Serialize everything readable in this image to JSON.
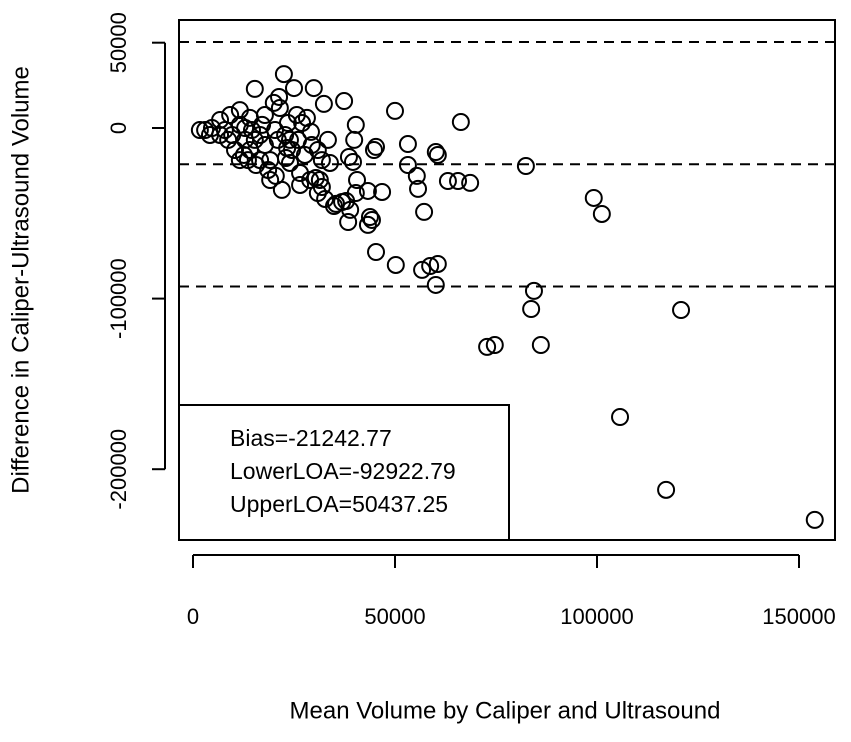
{
  "chart_data": {
    "type": "scatter",
    "x_label": "Mean Volume by Caliper and Ultrasound",
    "y_label": "Difference in Caliper-Ultrasound Volume",
    "x": [
      153900,
      117100,
      105700,
      120800,
      86100,
      72800,
      74700,
      83700,
      84400,
      82400,
      99200,
      101200,
      66300,
      50000,
      53200,
      53200,
      55400,
      55700,
      57200,
      60100,
      60600,
      63100,
      65600,
      68600,
      50200,
      56700,
      58700,
      60600,
      60100,
      45300,
      45300,
      44800,
      43800,
      44300,
      43300,
      46800,
      43300,
      40600,
      40300,
      37900,
      38900,
      36900,
      35400,
      34900,
      32700,
      38400,
      40300,
      39600,
      38600,
      37400,
      39900,
      33900,
      33400,
      32400,
      29900,
      25000,
      22500,
      21300,
      20000,
      15300,
      31400,
      30400,
      30900,
      31900,
      29000,
      26500,
      24000,
      22000,
      19100,
      26500,
      23300,
      27000,
      29200,
      28200,
      25700,
      23500,
      21500,
      17800,
      11600,
      9200,
      6700,
      19100,
      16600,
      14100,
      12900,
      11600,
      10400,
      8700,
      6700,
      4700,
      3000,
      1700,
      4200,
      7900,
      11600,
      14600,
      16600,
      17800,
      21000,
      22800,
      24500,
      26000,
      27700,
      29400,
      30900,
      31900,
      20300,
      17100,
      14100,
      12900,
      15300,
      9700,
      13600,
      15600,
      18600,
      20500,
      23000,
      24000,
      12600
    ],
    "y": [
      -229700,
      -212100,
      -169400,
      -106700,
      -127200,
      -128300,
      -127200,
      -106100,
      -95500,
      -22300,
      -41000,
      -50400,
      3500,
      10000,
      -9400,
      -21700,
      -28100,
      -35700,
      -49200,
      -14100,
      -15800,
      -31100,
      -31100,
      -32200,
      -80300,
      -83200,
      -80900,
      -79700,
      -92000,
      -72700,
      -11100,
      -12900,
      -52200,
      -53900,
      -56800,
      -37500,
      -36900,
      -30500,
      -38100,
      -42800,
      -48000,
      -43400,
      -44500,
      -45700,
      -41600,
      -55100,
      1800,
      -19900,
      -17000,
      15800,
      -7000,
      -20500,
      -7000,
      14100,
      23400,
      23400,
      31600,
      18200,
      14700,
      22900,
      -30500,
      -29300,
      -38100,
      -34600,
      -30500,
      -26400,
      -20500,
      -36300,
      -30500,
      -33400,
      -11700,
      2900,
      -2300,
      5900,
      7600,
      2900,
      11700,
      7600,
      10500,
      7600,
      4700,
      -18800,
      -18800,
      -12900,
      -7000,
      -18800,
      -12900,
      -7000,
      -4100,
      0,
      -1200,
      -1200,
      -4100,
      -1200,
      1800,
      -1200,
      -4100,
      -10000,
      -7000,
      -4100,
      -12900,
      -7000,
      -15800,
      -10000,
      -12900,
      -18800,
      -1200,
      1800,
      5900,
      0,
      -7000,
      -4100,
      -18800,
      -21700,
      -24600,
      -28100,
      -17600,
      -7000,
      -15800
    ],
    "xlim": [
      -3465,
      158911
    ],
    "ylim": [
      -241500,
      63300
    ],
    "xticks": [
      0,
      50000,
      100000,
      150000
    ],
    "yticks": [
      -200000,
      -100000,
      0,
      50000
    ],
    "reference_lines": [
      50437.25,
      -21242.77,
      -92922.79
    ],
    "annotations": [
      "Bias=-21242.77",
      "LowerLOA=-92922.79",
      "UpperLOA=50437.25"
    ],
    "color": "#000000"
  }
}
